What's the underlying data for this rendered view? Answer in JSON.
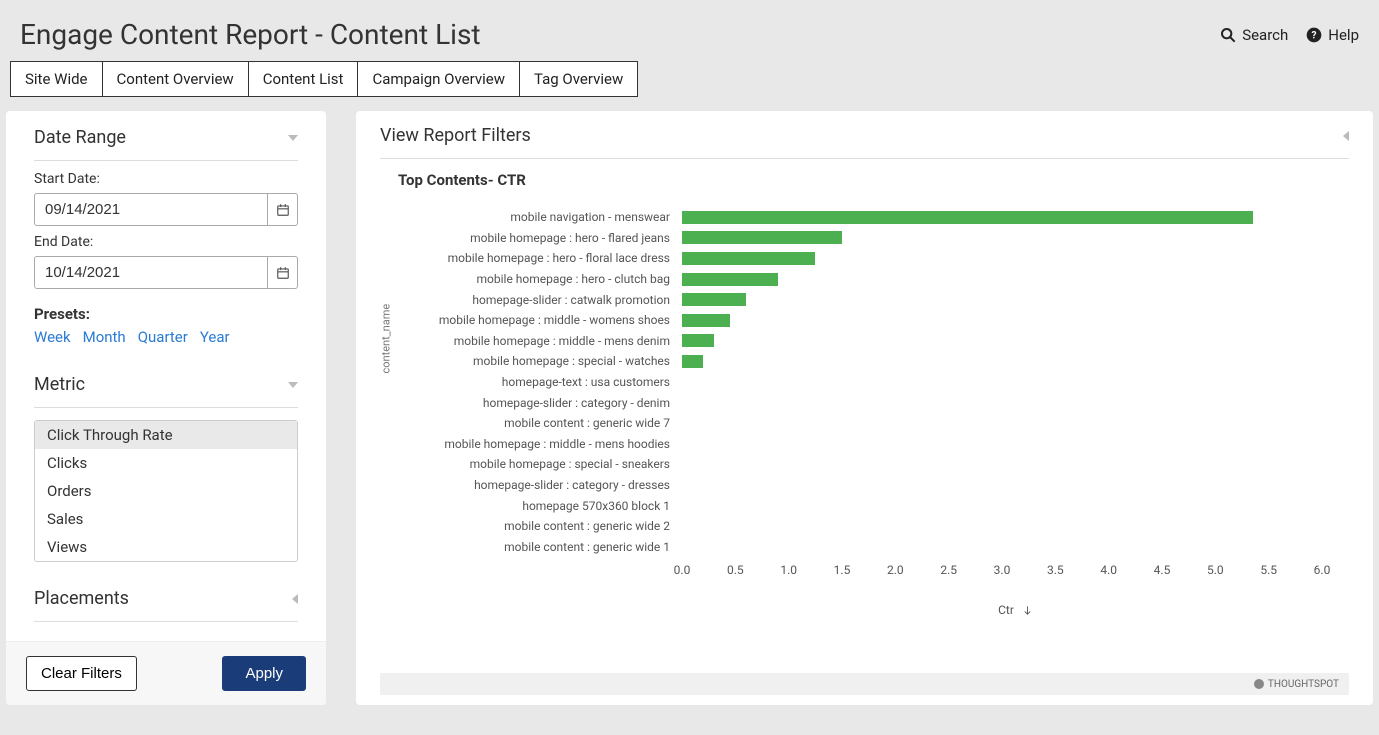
{
  "header": {
    "title": "Engage Content Report - Content List",
    "search_label": "Search",
    "help_label": "Help"
  },
  "tabs": [
    "Site Wide",
    "Content Overview",
    "Content List",
    "Campaign Overview",
    "Tag Overview"
  ],
  "sidebar": {
    "date_range": {
      "title": "Date Range",
      "start_label": "Start Date:",
      "start_value": "09/14/2021",
      "end_label": "End Date:",
      "end_value": "10/14/2021",
      "presets_label": "Presets:",
      "presets": [
        "Week",
        "Month",
        "Quarter",
        "Year"
      ]
    },
    "metric": {
      "title": "Metric",
      "options": [
        "Click Through Rate",
        "Clicks",
        "Orders",
        "Sales",
        "Views"
      ],
      "selected_index": 0
    },
    "placements": {
      "title": "Placements"
    },
    "footer": {
      "clear_label": "Clear Filters",
      "apply_label": "Apply"
    }
  },
  "content": {
    "header": "View Report Filters",
    "chart": {
      "type": "bar-horizontal",
      "title": "Top Contents- CTR",
      "y_axis_label": "content_name",
      "x_axis_label": "Ctr",
      "bar_color": "#4caf50",
      "background_color": "#ffffff",
      "text_color": "#555555",
      "title_fontsize": 15,
      "label_fontsize": 12,
      "xlim": [
        0.0,
        6.0
      ],
      "xtick_step": 0.5,
      "xticks": [
        "0.0",
        "0.5",
        "1.0",
        "1.5",
        "2.0",
        "2.5",
        "3.0",
        "3.5",
        "4.0",
        "4.5",
        "5.0",
        "5.5",
        "6.0"
      ],
      "rows": [
        {
          "label": "mobile navigation - menswear",
          "value": 5.35
        },
        {
          "label": "mobile homepage : hero - flared jeans",
          "value": 1.5
        },
        {
          "label": "mobile homepage : hero - floral lace dress",
          "value": 1.25
        },
        {
          "label": "mobile homepage : hero - clutch bag",
          "value": 0.9
        },
        {
          "label": "homepage-slider : catwalk promotion",
          "value": 0.6
        },
        {
          "label": "mobile homepage : middle - womens shoes",
          "value": 0.45
        },
        {
          "label": "mobile homepage : middle - mens denim",
          "value": 0.3
        },
        {
          "label": "mobile homepage : special - watches",
          "value": 0.2
        },
        {
          "label": "homepage-text : usa customers",
          "value": 0.0
        },
        {
          "label": "homepage-slider : category - denim",
          "value": 0.0
        },
        {
          "label": "mobile content : generic wide 7",
          "value": 0.0
        },
        {
          "label": "mobile homepage : middle - mens hoodies",
          "value": 0.0
        },
        {
          "label": "mobile homepage : special - sneakers",
          "value": 0.0
        },
        {
          "label": "homepage-slider : category - dresses",
          "value": 0.0
        },
        {
          "label": "homepage 570x360 block 1",
          "value": 0.0
        },
        {
          "label": "mobile content : generic wide 2",
          "value": 0.0
        },
        {
          "label": "mobile content : generic wide 1",
          "value": 0.0
        }
      ]
    },
    "footer_brand": "THOUGHTSPOT"
  }
}
